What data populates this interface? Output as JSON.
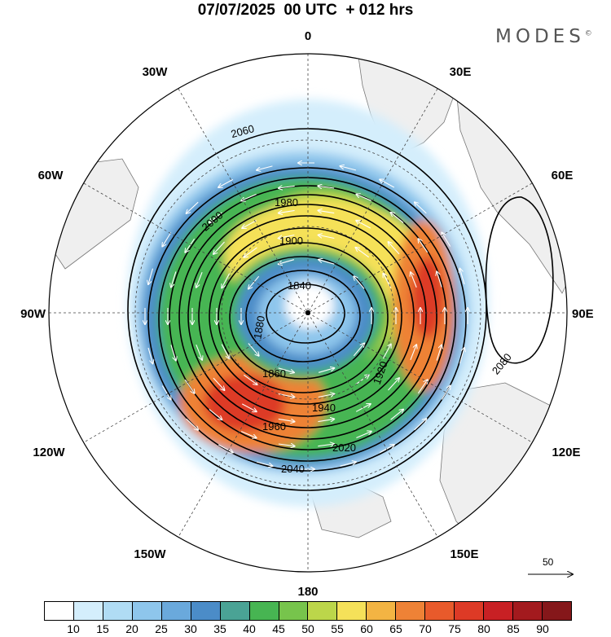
{
  "title": "07/07/2025  00 UTC  + 012 hrs",
  "brand": "MODES",
  "brand_mark": "©",
  "longitude_labels": [
    "0",
    "30E",
    "60E",
    "90E",
    "120E",
    "150E",
    "180",
    "150W",
    "120W",
    "90W",
    "60W",
    "30W"
  ],
  "contour_labels": [
    "1840",
    "1860",
    "1880",
    "1900",
    "1920",
    "1940",
    "1960",
    "1980",
    "2000",
    "2020",
    "2040",
    "2060",
    "2080"
  ],
  "colorbar": {
    "labels": [
      "10",
      "15",
      "20",
      "25",
      "30",
      "35",
      "40",
      "45",
      "50",
      "55",
      "60",
      "65",
      "70",
      "75",
      "80",
      "85",
      "90"
    ],
    "colors": [
      "#ffffff",
      "#d4eefc",
      "#b0dcf4",
      "#8ec6ec",
      "#6aa9dc",
      "#4b8cc8",
      "#4aa395",
      "#47b552",
      "#77c44c",
      "#bcd64a",
      "#f5e159",
      "#f3b443",
      "#ee8236",
      "#e85a2b",
      "#dd3a26",
      "#c82024",
      "#a31a1e",
      "#85171a"
    ]
  },
  "reference_vector": "50",
  "colors": {
    "land": "#efefef",
    "coast": "#777777",
    "contour": "#000000",
    "wind_arrow": "#ffffff"
  }
}
